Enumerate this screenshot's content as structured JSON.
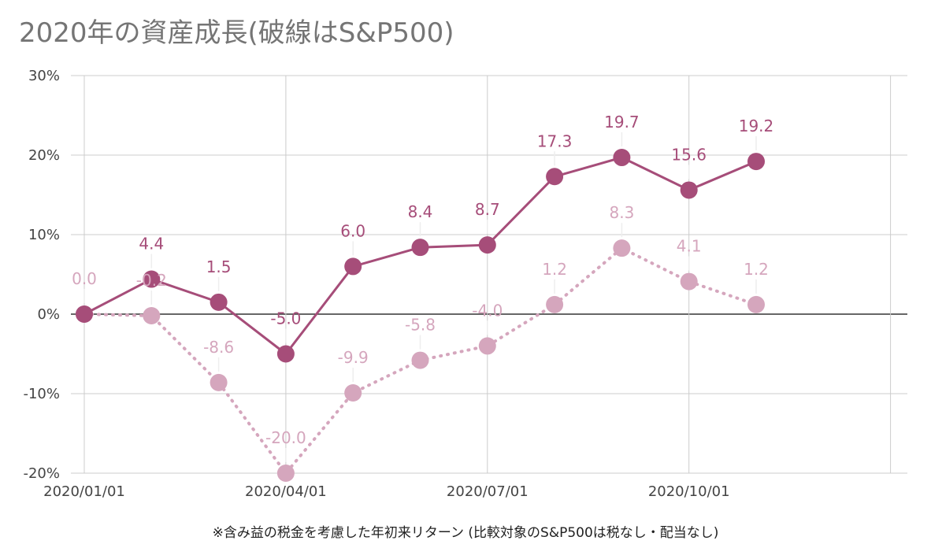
{
  "chart_data": {
    "type": "line",
    "title": "2020年の資産成長(破線はS&P500)",
    "note": "※含み益の税金を考慮した年初来リターン (比較対象のS&P500は税なし・配当なし)",
    "x": [
      "2020/01/01",
      "2020/02/01",
      "2020/03/01",
      "2020/04/01",
      "2020/05/01",
      "2020/06/01",
      "2020/07/01",
      "2020/08/01",
      "2020/09/01",
      "2020/10/01",
      "2020/11/01"
    ],
    "x_tick_labels": [
      "2020/01/01",
      "2020/04/01",
      "2020/07/01",
      "2020/10/01"
    ],
    "y_tick_labels": [
      "30%",
      "20%",
      "10%",
      "0%",
      "-10%",
      "-20%"
    ],
    "ylim": [
      -20,
      30
    ],
    "grid": true,
    "series": [
      {
        "style": "solid",
        "color": "#a64d79",
        "values": [
          0.0,
          4.4,
          1.5,
          -5.0,
          6.0,
          8.4,
          8.7,
          17.3,
          19.7,
          15.6,
          19.2
        ],
        "labels": [
          "",
          "4.4",
          "1.5",
          "-5.0",
          "6.0",
          "8.4",
          "8.7",
          "17.3",
          "19.7",
          "15.6",
          "19.2"
        ]
      },
      {
        "style": "dotted",
        "color": "#d5a6bd",
        "values": [
          0.0,
          -0.2,
          -8.6,
          -20.0,
          -9.9,
          -5.8,
          -4.0,
          1.2,
          8.3,
          4.1,
          1.2
        ],
        "labels": [
          "0.0",
          "-0.2",
          "-8.6",
          "-20.0",
          "-9.9",
          "-5.8",
          "-4.0",
          "1.2",
          "8.3",
          "4.1",
          "1.2"
        ]
      }
    ]
  }
}
